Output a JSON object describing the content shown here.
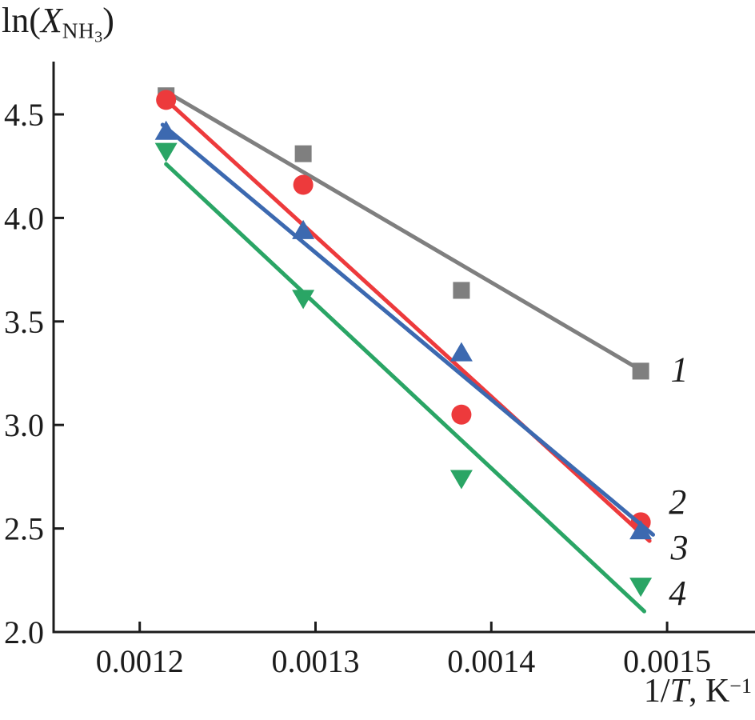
{
  "figure": {
    "background": "#ffffff",
    "text_color": "#1c1c1c",
    "axis_color": "#1c1c1c"
  },
  "chart_data": {
    "type": "scatter",
    "title_parts": {
      "prefix": "ln(",
      "variable": "X",
      "subscript": "NH",
      "subsubscript": "3",
      "close": ")"
    },
    "xlabel_parts": {
      "prefix": "1/",
      "variable": "T",
      "unit": ", K",
      "superscript": "−1"
    },
    "xlim": [
      0.001151,
      0.00155
    ],
    "ylim": [
      2.0,
      4.755
    ],
    "grid": false,
    "legend": "inline-labels-right",
    "x_ticks": [
      {
        "value": 0.0012,
        "label": "0.0012"
      },
      {
        "value": 0.0013,
        "label": "0.0013"
      },
      {
        "value": 0.0014,
        "label": "0.0014"
      },
      {
        "value": 0.0015,
        "label": "0.0015"
      }
    ],
    "y_ticks": [
      {
        "value": 2.0,
        "label": "2.0"
      },
      {
        "value": 2.5,
        "label": "2.5"
      },
      {
        "value": 3.0,
        "label": "3.0"
      },
      {
        "value": 3.5,
        "label": "3.5"
      },
      {
        "value": 4.0,
        "label": "4.0"
      },
      {
        "value": 4.5,
        "label": "4.5"
      }
    ],
    "x": [
      0.001215,
      0.001293,
      0.001383,
      0.001485
    ],
    "series": [
      {
        "name": "1",
        "label": "1",
        "marker": "square",
        "color": "#7f7f7f",
        "values": [
          4.59,
          4.31,
          3.65,
          3.26
        ],
        "fit_line": {
          "x1": 0.001215,
          "y1": 4.61,
          "x2": 0.001486,
          "y2": 3.26
        },
        "label_x": 0.001507,
        "label_y": 3.27
      },
      {
        "name": "2",
        "label": "2",
        "marker": "circle",
        "color": "#ed3a3c",
        "values": [
          4.57,
          4.16,
          3.05,
          2.53
        ],
        "fit_line": {
          "x1": 0.001215,
          "y1": 4.57,
          "x2": 0.00149,
          "y2": 2.44
        },
        "label_x": 0.001506,
        "label_y": 2.63
      },
      {
        "name": "3",
        "label": "3",
        "marker": "triangle-up",
        "color": "#3c69b0",
        "values": [
          4.42,
          3.94,
          3.35,
          2.49
        ],
        "fit_line": {
          "x1": 0.001213,
          "y1": 4.45,
          "x2": 0.001492,
          "y2": 2.47
        },
        "label_x": 0.001507,
        "label_y": 2.41
      },
      {
        "name": "4",
        "label": "4",
        "marker": "triangle-down",
        "color": "#2aa565",
        "values": [
          4.32,
          3.61,
          2.74,
          2.22
        ],
        "fit_line": {
          "x1": 0.001215,
          "y1": 4.26,
          "x2": 0.001487,
          "y2": 2.1
        },
        "label_x": 0.001506,
        "label_y": 2.19
      }
    ]
  }
}
